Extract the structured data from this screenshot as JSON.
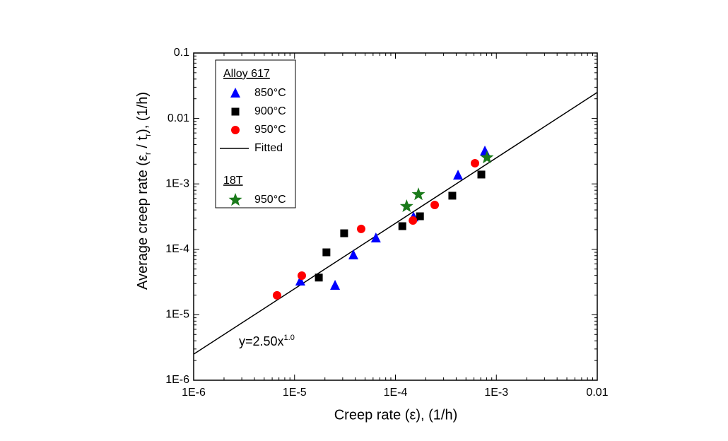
{
  "chart_data": {
    "type": "scatter",
    "xlabel": "Creep rate (ε), (1/h)",
    "ylabel": [
      "Average creep rate (ε",
      "r",
      " / t",
      "r",
      "), (1/h)"
    ],
    "annotation": {
      "text": "y=2.50x",
      "sup": "1.0"
    },
    "xscale": "log",
    "yscale": "log",
    "xlim": [
      1e-06,
      0.01
    ],
    "ylim": [
      1e-06,
      0.1
    ],
    "xticks": [
      {
        "value": 1e-06,
        "label": "1E-6"
      },
      {
        "value": 1e-05,
        "label": "1E-5"
      },
      {
        "value": 0.0001,
        "label": "1E-4"
      },
      {
        "value": 0.001,
        "label": "1E-3"
      },
      0.01
    ],
    "yticks": [
      {
        "value": 1e-06,
        "label": "1E-6"
      },
      {
        "value": 1e-05,
        "label": "1E-5"
      },
      {
        "value": 0.0001,
        "label": "1E-4"
      },
      {
        "value": 0.001,
        "label": "1E-3"
      },
      0.01,
      0.1
    ],
    "legend": "upper left",
    "series": [
      {
        "name": "850°C",
        "group": "Alloy 617",
        "marker": "triangle",
        "color": "#0000ff",
        "x": [
          1.14e-05,
          2.52e-05,
          3.83e-05,
          6.4e-05,
          0.000151,
          0.000417,
          0.00077
        ],
        "values": [
          3.25e-05,
          2.8e-05,
          8.15e-05,
          0.000148,
          0.00031,
          0.00135,
          0.00315
        ]
      },
      {
        "name": "900°C",
        "group": "Alloy 617",
        "marker": "square",
        "color": "#000000",
        "x": [
          1.74e-05,
          2.07e-05,
          3.1e-05,
          0.000117,
          0.000175,
          0.000366,
          0.00071
        ],
        "values": [
          3.7e-05,
          9e-05,
          0.000176,
          0.000226,
          0.00032,
          0.00066,
          0.00139
        ]
      },
      {
        "name": "950°C",
        "group": "Alloy 617",
        "marker": "circle",
        "color": "#ff0000",
        "x": [
          6.7e-06,
          1.18e-05,
          4.57e-05,
          0.000149,
          0.000245,
          0.000614
        ],
        "values": [
          1.98e-05,
          3.96e-05,
          0.000205,
          0.000276,
          0.000477,
          0.00207
        ]
      },
      {
        "name": "Fitted",
        "group": "Alloy 617",
        "marker": "line",
        "color": "#000000",
        "x": [
          1e-06,
          0.01
        ],
        "values": [
          2.5e-06,
          0.025
        ]
      },
      {
        "name": "950°C",
        "group": "18T",
        "marker": "star",
        "color": "#1a7a1a",
        "x": [
          0.000129,
          0.000169,
          0.000807
        ],
        "values": [
          0.000454,
          0.00069,
          0.00252
        ]
      }
    ]
  }
}
